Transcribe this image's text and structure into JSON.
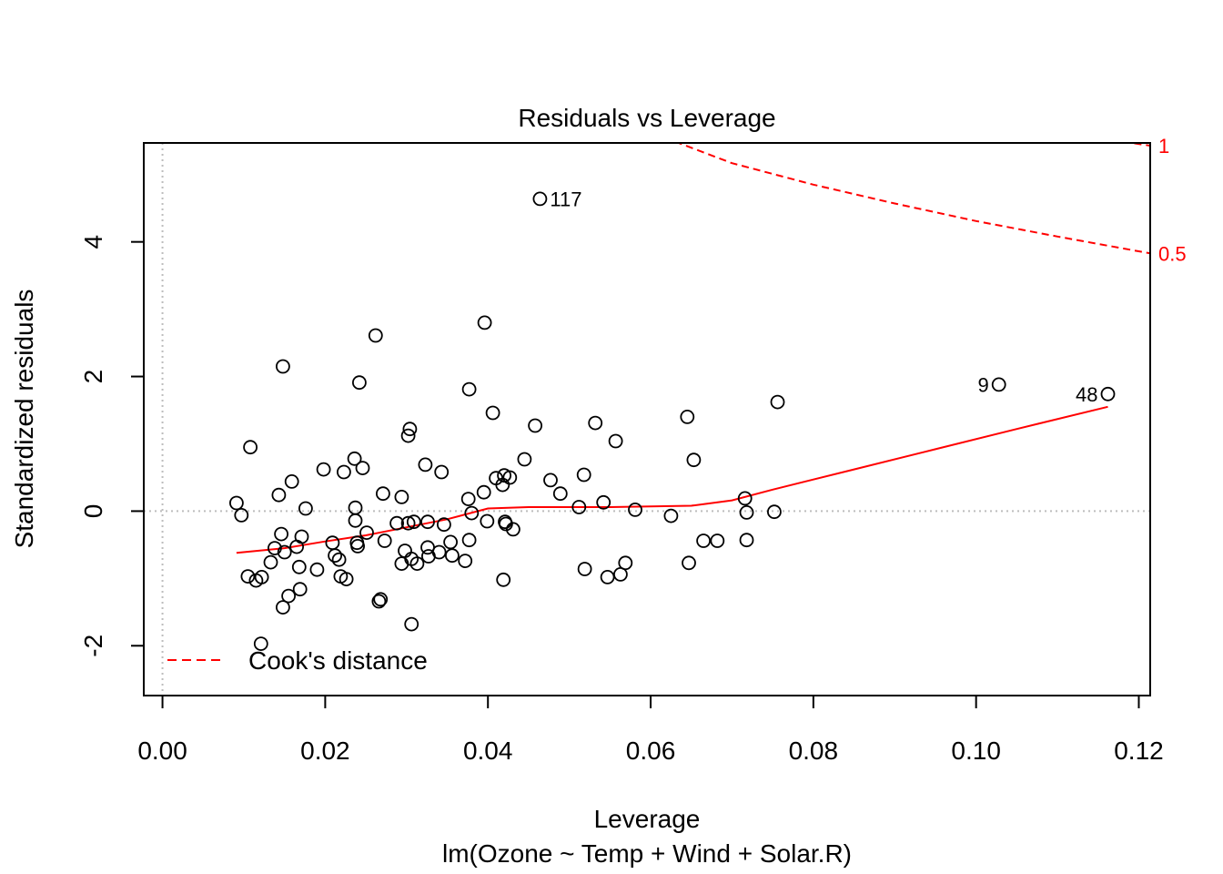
{
  "chart_data": {
    "type": "scatter",
    "title": "Residuals vs Leverage",
    "xlabel": "Leverage",
    "subtitle": "lm(Ozone ~ Temp + Wind + Solar.R)",
    "ylabel": "Standardized residuals",
    "xlim": [
      -0.0023,
      0.1214
    ],
    "ylim": [
      -2.74,
      5.47
    ],
    "x_ticks": [
      0.0,
      0.02,
      0.04,
      0.06,
      0.08,
      0.1,
      0.12
    ],
    "x_tick_labels": [
      "0.00",
      "0.02",
      "0.04",
      "0.06",
      "0.08",
      "0.10",
      "0.12"
    ],
    "y_ticks": [
      -2,
      0,
      2,
      4
    ],
    "y_tick_labels": [
      "-2",
      "0",
      "2",
      "4"
    ],
    "reference_lines": {
      "x": 0,
      "y": 0,
      "style": "dotted",
      "color": "#bdbdbd"
    },
    "points": [
      [
        0.0091,
        0.12
      ],
      [
        0.0097,
        -0.06
      ],
      [
        0.0105,
        -0.97
      ],
      [
        0.0108,
        0.95
      ],
      [
        0.0115,
        -1.03
      ],
      [
        0.0121,
        -1.97
      ],
      [
        0.0122,
        -0.98
      ],
      [
        0.0133,
        -0.76
      ],
      [
        0.0138,
        -0.55
      ],
      [
        0.0143,
        0.24
      ],
      [
        0.0146,
        -0.34
      ],
      [
        0.0148,
        -1.43
      ],
      [
        0.0148,
        2.15
      ],
      [
        0.015,
        -0.61
      ],
      [
        0.0155,
        -1.26
      ],
      [
        0.0159,
        0.44
      ],
      [
        0.0165,
        -0.53
      ],
      [
        0.0168,
        -0.83
      ],
      [
        0.0169,
        -1.16
      ],
      [
        0.0171,
        -0.38
      ],
      [
        0.0176,
        0.04
      ],
      [
        0.019,
        -0.87
      ],
      [
        0.0198,
        0.62
      ],
      [
        0.0209,
        -0.47
      ],
      [
        0.0212,
        -0.66
      ],
      [
        0.0217,
        -0.72
      ],
      [
        0.0219,
        -0.97
      ],
      [
        0.0223,
        0.58
      ],
      [
        0.0226,
        -1.01
      ],
      [
        0.0236,
        0.78
      ],
      [
        0.0237,
        0.05
      ],
      [
        0.0237,
        -0.14
      ],
      [
        0.0239,
        -0.47
      ],
      [
        0.024,
        -0.52
      ],
      [
        0.0242,
        1.91
      ],
      [
        0.0246,
        0.64
      ],
      [
        0.0251,
        -0.32
      ],
      [
        0.0262,
        2.61
      ],
      [
        0.0266,
        -1.34
      ],
      [
        0.0268,
        -1.31
      ],
      [
        0.0271,
        0.26
      ],
      [
        0.0273,
        -0.44
      ],
      [
        0.0288,
        -0.18
      ],
      [
        0.0294,
        0.21
      ],
      [
        0.0294,
        -0.78
      ],
      [
        0.0298,
        -0.59
      ],
      [
        0.0302,
        -0.18
      ],
      [
        0.0302,
        1.12
      ],
      [
        0.0304,
        1.22
      ],
      [
        0.0306,
        -1.68
      ],
      [
        0.0306,
        -0.71
      ],
      [
        0.0309,
        -0.16
      ],
      [
        0.0313,
        -0.78
      ],
      [
        0.0323,
        0.69
      ],
      [
        0.0326,
        -0.16
      ],
      [
        0.0326,
        -0.54
      ],
      [
        0.0327,
        -0.67
      ],
      [
        0.034,
        -0.61
      ],
      [
        0.0343,
        0.58
      ],
      [
        0.0346,
        -0.2
      ],
      [
        0.0354,
        -0.46
      ],
      [
        0.0356,
        -0.66
      ],
      [
        0.0372,
        -0.74
      ],
      [
        0.0376,
        0.18
      ],
      [
        0.0377,
        -0.43
      ],
      [
        0.0377,
        1.81
      ],
      [
        0.038,
        -0.03
      ],
      [
        0.0395,
        0.28
      ],
      [
        0.0396,
        2.8
      ],
      [
        0.0399,
        -0.15
      ],
      [
        0.0406,
        1.46
      ],
      [
        0.041,
        0.49
      ],
      [
        0.0418,
        0.39
      ],
      [
        0.0419,
        -1.02
      ],
      [
        0.042,
        0.53
      ],
      [
        0.0421,
        -0.16
      ],
      [
        0.0422,
        -0.19
      ],
      [
        0.0427,
        0.5
      ],
      [
        0.0431,
        -0.27
      ],
      [
        0.0445,
        0.77
      ],
      [
        0.0458,
        1.27
      ],
      [
        0.0464,
        4.64
      ],
      [
        0.0477,
        0.46
      ],
      [
        0.0489,
        0.26
      ],
      [
        0.0512,
        0.06
      ],
      [
        0.0518,
        0.54
      ],
      [
        0.0519,
        -0.86
      ],
      [
        0.0532,
        1.31
      ],
      [
        0.0542,
        0.13
      ],
      [
        0.0547,
        -0.98
      ],
      [
        0.0557,
        1.04
      ],
      [
        0.0563,
        -0.94
      ],
      [
        0.0569,
        -0.77
      ],
      [
        0.0581,
        0.02
      ],
      [
        0.0625,
        -0.07
      ],
      [
        0.0645,
        1.4
      ],
      [
        0.0647,
        -0.77
      ],
      [
        0.0653,
        0.76
      ],
      [
        0.0665,
        -0.44
      ],
      [
        0.0682,
        -0.44
      ],
      [
        0.0716,
        0.19
      ],
      [
        0.0718,
        -0.02
      ],
      [
        0.0718,
        -0.43
      ],
      [
        0.0752,
        -0.01
      ],
      [
        0.0756,
        1.62
      ],
      [
        0.1028,
        1.88
      ],
      [
        0.1162,
        1.74
      ]
    ],
    "point_labels": [
      {
        "x": 0.0464,
        "y": 4.64,
        "text": "117",
        "side": "right"
      },
      {
        "x": 0.1028,
        "y": 1.88,
        "text": "9",
        "side": "left"
      },
      {
        "x": 0.1162,
        "y": 1.74,
        "text": "48",
        "side": "left"
      }
    ],
    "smoother": {
      "color": "#ff0000",
      "points": [
        [
          0.0091,
          -0.62
        ],
        [
          0.015,
          -0.55
        ],
        [
          0.02,
          -0.45
        ],
        [
          0.025,
          -0.36
        ],
        [
          0.03,
          -0.24
        ],
        [
          0.035,
          -0.12
        ],
        [
          0.04,
          0.04
        ],
        [
          0.045,
          0.06
        ],
        [
          0.05,
          0.06
        ],
        [
          0.055,
          0.06
        ],
        [
          0.06,
          0.07
        ],
        [
          0.065,
          0.08
        ],
        [
          0.07,
          0.16
        ],
        [
          0.075,
          0.32
        ],
        [
          0.085,
          0.62
        ],
        [
          0.095,
          0.92
        ],
        [
          0.105,
          1.22
        ],
        [
          0.1162,
          1.55
        ]
      ]
    },
    "cooks_distance": {
      "legend": "Cook's distance",
      "legend_position": "bottom-left",
      "color": "#ff0000",
      "contour_labels": [
        {
          "level": "1",
          "y_end": 5.43
        },
        {
          "level": "0.5",
          "y_end": 3.83
        }
      ],
      "contours": [
        {
          "level": "1",
          "points": [
            [
              0.118,
              5.49
            ],
            [
              0.1214,
              5.43
            ]
          ]
        },
        {
          "level": "0.5",
          "points": [
            [
              0.063,
              5.49
            ],
            [
              0.07,
              5.17
            ],
            [
              0.08,
              4.85
            ],
            [
              0.09,
              4.57
            ],
            [
              0.1,
              4.31
            ],
            [
              0.11,
              4.08
            ],
            [
              0.1214,
              3.83
            ]
          ]
        }
      ]
    }
  }
}
